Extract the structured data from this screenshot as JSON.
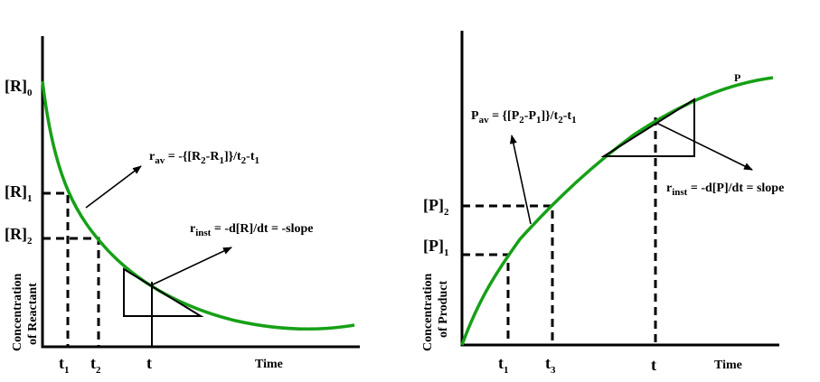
{
  "left": {
    "r0": {
      "main": "[R]",
      "sub": "0"
    },
    "r1": {
      "main": "[R]",
      "sub": "1"
    },
    "r2": {
      "main": "[R]",
      "sub": "2"
    },
    "ylabel_line1": "Concentration",
    "ylabel_line2": "of Reactant",
    "t1": {
      "main": "t",
      "sub": "1"
    },
    "t2": {
      "main": "t",
      "sub": "2"
    },
    "t": "t",
    "xlabel": "Time",
    "rav": {
      "a": "r",
      "b": "av",
      "c": " = -{[R",
      "d": "2",
      "e": "-R",
      "f": "1",
      "g": "]}/t",
      "h": "2",
      "i": "-t",
      "j": "1"
    },
    "rinst": {
      "a": "r",
      "b": "inst",
      "c": " = -d[R]/dt = -slope"
    }
  },
  "right": {
    "p2": {
      "main": "[P]",
      "sub": "2"
    },
    "p1": {
      "main": "[P]",
      "sub": "1"
    },
    "ylabel_line1": "Concentration",
    "ylabel_line2": "of Product",
    "t1": {
      "main": "t",
      "sub": "1"
    },
    "t3": {
      "main": "t",
      "sub": "3"
    },
    "t": "t",
    "xlabel": "Time",
    "curve_label": "P",
    "pav": {
      "a": "P",
      "b": "av",
      "c": " = {[P",
      "d": "2",
      "e": "-P",
      "f": "1",
      "g": "]}/t",
      "h": "2",
      "i": "-t",
      "j": "1"
    },
    "rinst": {
      "a": "r",
      "b": "inst",
      "c": " = -d[P]/dt = slope"
    }
  },
  "colors": {
    "curve": "#16a016",
    "axis": "#000000"
  }
}
